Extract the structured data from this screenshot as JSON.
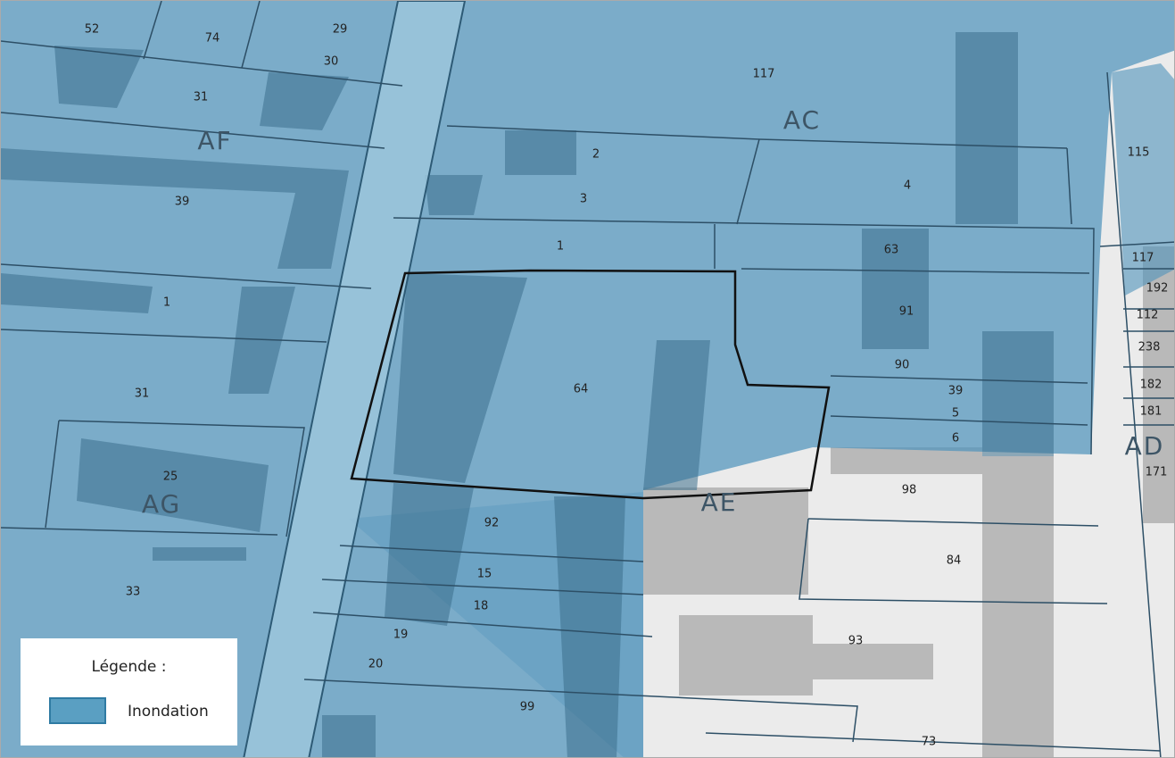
{
  "map": {
    "sections": [
      "AF",
      "AC",
      "AG",
      "AE",
      "AD"
    ],
    "parcels": [
      "52",
      "74",
      "29",
      "30",
      "31",
      "39",
      "1",
      "31",
      "25",
      "33",
      "117",
      "2",
      "3",
      "4",
      "115",
      "1",
      "63",
      "91",
      "90",
      "39",
      "5",
      "6",
      "64",
      "117",
      "192",
      "112",
      "238",
      "182",
      "181",
      "171",
      "98",
      "92",
      "15",
      "18",
      "19",
      "20",
      "84",
      "93",
      "99",
      "73"
    ]
  },
  "legend": {
    "title": "Légende :",
    "items": [
      "Inondation"
    ]
  }
}
